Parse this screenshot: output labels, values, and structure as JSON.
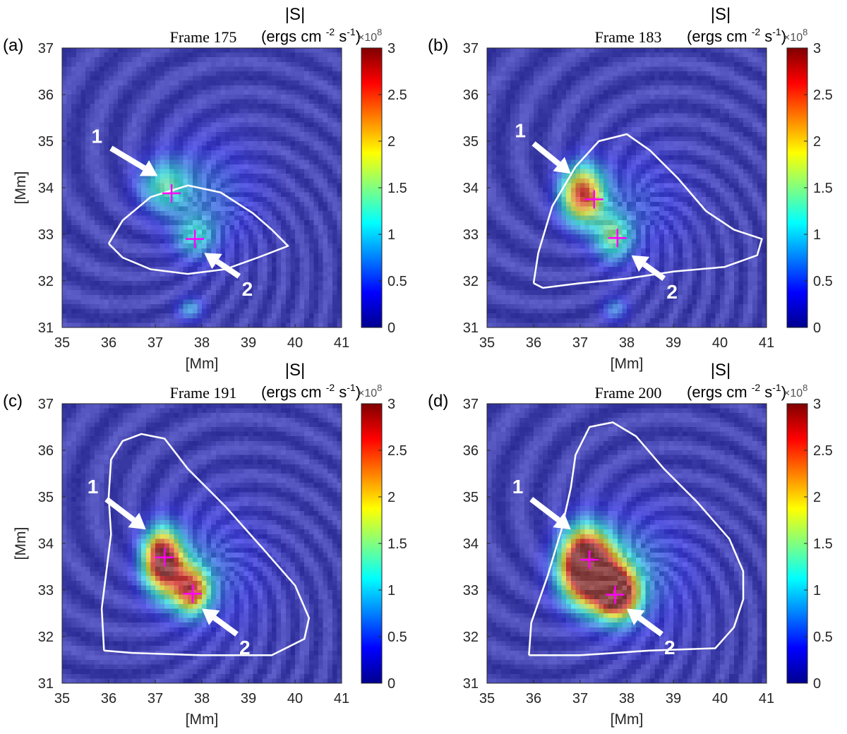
{
  "figure": {
    "colorbar_label_top": "|S|",
    "colorbar_label_units": "(ergs cm",
    "colorbar_label_exp1": "-2",
    "colorbar_label_mid": " s",
    "colorbar_label_exp2": "-1",
    "colorbar_label_end": ")",
    "colorbar_multiplier": "×10",
    "colorbar_multiplier_exp": "8",
    "colormap": [
      "#00008f",
      "#0000ff",
      "#0080ff",
      "#00ffff",
      "#80ff80",
      "#ffff00",
      "#ff8000",
      "#ff0000",
      "#800000"
    ]
  },
  "chart_data": [
    {
      "type": "heatmap",
      "panel_label": "(a)",
      "title": "Frame 175",
      "xlabel": "[Mm]",
      "ylabel": "[Mm]",
      "xlim": [
        35,
        41
      ],
      "ylim": [
        31,
        37
      ],
      "xticks": [
        35,
        36,
        37,
        38,
        39,
        40,
        41
      ],
      "yticks": [
        31,
        32,
        33,
        34,
        35,
        36,
        37
      ],
      "colorbar": {
        "range": [
          0,
          3
        ],
        "ticks": [
          "0",
          "0.5",
          "1",
          "1.5",
          "2",
          "2.5",
          "3"
        ]
      },
      "markers": [
        {
          "label": "1",
          "x": 37.35,
          "y": 33.88
        },
        {
          "label": "2",
          "x": 37.85,
          "y": 32.9
        }
      ],
      "arrows": [
        {
          "label": "1",
          "from": [
            36.05,
            34.85
          ],
          "to": [
            37.05,
            34.25
          ]
        },
        {
          "label": "2",
          "from": [
            38.8,
            32.1
          ],
          "to": [
            38.05,
            32.6
          ]
        }
      ],
      "contour": [
        [
          36.0,
          32.8
        ],
        [
          36.3,
          33.3
        ],
        [
          36.9,
          33.8
        ],
        [
          37.7,
          34.05
        ],
        [
          38.4,
          33.9
        ],
        [
          39.1,
          33.45
        ],
        [
          39.5,
          33.1
        ],
        [
          39.85,
          32.75
        ],
        [
          39.2,
          32.5
        ],
        [
          38.5,
          32.25
        ],
        [
          37.7,
          32.15
        ],
        [
          36.9,
          32.25
        ],
        [
          36.3,
          32.5
        ],
        [
          36.0,
          32.8
        ]
      ],
      "blobs": [
        {
          "x": 37.2,
          "y": 34.05,
          "peak": 1.05,
          "sx": 0.38,
          "sy": 0.38
        },
        {
          "x": 37.85,
          "y": 32.95,
          "peak": 0.8,
          "sx": 0.3,
          "sy": 0.32
        },
        {
          "x": 37.75,
          "y": 31.4,
          "peak": 0.7,
          "sx": 0.2,
          "sy": 0.18
        },
        {
          "x": 38.1,
          "y": 33.8,
          "peak": 0.45,
          "sx": 0.8,
          "sy": 0.9
        }
      ]
    },
    {
      "type": "heatmap",
      "panel_label": "(b)",
      "title": "Frame 183",
      "xlabel": "[Mm]",
      "ylabel": "",
      "xlim": [
        35,
        41
      ],
      "ylim": [
        31,
        37
      ],
      "xticks": [
        35,
        36,
        37,
        38,
        39,
        40,
        41
      ],
      "yticks": [
        31,
        32,
        33,
        34,
        35,
        36,
        37
      ],
      "colorbar": {
        "range": [
          0,
          3
        ],
        "ticks": [
          "0",
          "0.5",
          "1",
          "1.5",
          "2",
          "2.5",
          "3"
        ]
      },
      "markers": [
        {
          "label": "1",
          "x": 37.3,
          "y": 33.75
        },
        {
          "label": "2",
          "x": 37.8,
          "y": 32.92
        }
      ],
      "arrows": [
        {
          "label": "1",
          "from": [
            36.0,
            34.95
          ],
          "to": [
            36.8,
            34.3
          ]
        },
        {
          "label": "2",
          "from": [
            38.8,
            32.05
          ],
          "to": [
            38.1,
            32.55
          ]
        }
      ],
      "contour": [
        [
          36.0,
          31.95
        ],
        [
          36.1,
          32.6
        ],
        [
          36.4,
          33.6
        ],
        [
          36.9,
          34.45
        ],
        [
          37.4,
          35.0
        ],
        [
          38.0,
          35.15
        ],
        [
          38.5,
          34.8
        ],
        [
          39.1,
          34.2
        ],
        [
          39.7,
          33.5
        ],
        [
          40.3,
          33.1
        ],
        [
          40.9,
          32.9
        ],
        [
          40.8,
          32.55
        ],
        [
          40.1,
          32.3
        ],
        [
          39.0,
          32.2
        ],
        [
          38.0,
          32.05
        ],
        [
          37.0,
          31.95
        ],
        [
          36.2,
          31.85
        ],
        [
          36.0,
          31.95
        ]
      ],
      "blobs": [
        {
          "x": 37.05,
          "y": 33.85,
          "peak": 2.6,
          "sx": 0.32,
          "sy": 0.42
        },
        {
          "x": 37.7,
          "y": 32.95,
          "peak": 1.2,
          "sx": 0.28,
          "sy": 0.35
        },
        {
          "x": 37.75,
          "y": 31.4,
          "peak": 0.55,
          "sx": 0.2,
          "sy": 0.2
        },
        {
          "x": 38.2,
          "y": 33.6,
          "peak": 0.35,
          "sx": 0.8,
          "sy": 0.9
        }
      ]
    },
    {
      "type": "heatmap",
      "panel_label": "(c)",
      "title": "Frame 191",
      "xlabel": "[Mm]",
      "ylabel": "[Mm]",
      "xlim": [
        35,
        41
      ],
      "ylim": [
        31,
        37
      ],
      "xticks": [
        35,
        36,
        37,
        38,
        39,
        40,
        41
      ],
      "yticks": [
        31,
        32,
        33,
        34,
        35,
        36,
        37
      ],
      "colorbar": {
        "range": [
          0,
          3
        ],
        "ticks": [
          "0",
          "0.5",
          "1",
          "1.5",
          "2",
          "2.5",
          "3"
        ]
      },
      "markers": [
        {
          "label": "1",
          "x": 37.2,
          "y": 33.7
        },
        {
          "label": "2",
          "x": 37.8,
          "y": 32.92
        }
      ],
      "arrows": [
        {
          "label": "1",
          "from": [
            35.95,
            34.95
          ],
          "to": [
            36.8,
            34.3
          ]
        },
        {
          "label": "2",
          "from": [
            38.75,
            32.05
          ],
          "to": [
            38.0,
            32.6
          ]
        }
      ],
      "contour": [
        [
          35.9,
          31.7
        ],
        [
          35.85,
          32.6
        ],
        [
          35.95,
          33.4
        ],
        [
          36.05,
          34.2
        ],
        [
          36.0,
          35.0
        ],
        [
          36.05,
          35.8
        ],
        [
          36.3,
          36.2
        ],
        [
          36.7,
          36.35
        ],
        [
          37.2,
          36.25
        ],
        [
          37.7,
          35.6
        ],
        [
          38.5,
          34.8
        ],
        [
          39.3,
          33.9
        ],
        [
          40.0,
          33.1
        ],
        [
          40.3,
          32.4
        ],
        [
          40.2,
          31.95
        ],
        [
          39.5,
          31.6
        ],
        [
          38.0,
          31.6
        ],
        [
          36.5,
          31.65
        ],
        [
          35.9,
          31.7
        ]
      ],
      "blobs": [
        {
          "x": 37.15,
          "y": 33.7,
          "peak": 3.0,
          "sx": 0.28,
          "sy": 0.42
        },
        {
          "x": 37.8,
          "y": 32.95,
          "peak": 1.8,
          "sx": 0.25,
          "sy": 0.32
        },
        {
          "x": 37.5,
          "y": 33.2,
          "peak": 1.1,
          "sx": 0.4,
          "sy": 0.4
        },
        {
          "x": 38.1,
          "y": 33.4,
          "peak": 0.4,
          "sx": 0.9,
          "sy": 1.0
        }
      ]
    },
    {
      "type": "heatmap",
      "panel_label": "(d)",
      "title": "Frame 200",
      "xlabel": "[Mm]",
      "ylabel": "",
      "xlim": [
        35,
        41
      ],
      "ylim": [
        31,
        37
      ],
      "xticks": [
        35,
        36,
        37,
        38,
        39,
        40,
        41
      ],
      "yticks": [
        31,
        32,
        33,
        34,
        35,
        36,
        37
      ],
      "colorbar": {
        "range": [
          0,
          3
        ],
        "ticks": [
          "0",
          "0.5",
          "1",
          "1.5",
          "2",
          "2.5",
          "3"
        ]
      },
      "markers": [
        {
          "label": "1",
          "x": 37.2,
          "y": 33.65
        },
        {
          "label": "2",
          "x": 37.75,
          "y": 32.9
        }
      ],
      "arrows": [
        {
          "label": "1",
          "from": [
            35.95,
            34.95
          ],
          "to": [
            36.8,
            34.3
          ]
        },
        {
          "label": "2",
          "from": [
            38.75,
            32.05
          ],
          "to": [
            38.0,
            32.6
          ]
        }
      ],
      "contour": [
        [
          35.9,
          31.6
        ],
        [
          35.95,
          32.3
        ],
        [
          36.3,
          33.3
        ],
        [
          36.6,
          34.3
        ],
        [
          36.8,
          35.2
        ],
        [
          36.9,
          35.9
        ],
        [
          37.2,
          36.5
        ],
        [
          37.7,
          36.6
        ],
        [
          38.2,
          36.3
        ],
        [
          38.8,
          35.6
        ],
        [
          39.5,
          34.9
        ],
        [
          40.2,
          34.1
        ],
        [
          40.5,
          33.4
        ],
        [
          40.5,
          32.8
        ],
        [
          40.3,
          32.2
        ],
        [
          39.9,
          31.75
        ],
        [
          38.5,
          31.7
        ],
        [
          37.0,
          31.6
        ],
        [
          35.9,
          31.6
        ]
      ],
      "blobs": [
        {
          "x": 37.1,
          "y": 33.6,
          "peak": 3.2,
          "sx": 0.35,
          "sy": 0.5
        },
        {
          "x": 37.8,
          "y": 32.9,
          "peak": 2.8,
          "sx": 0.3,
          "sy": 0.35
        },
        {
          "x": 37.4,
          "y": 33.25,
          "peak": 1.8,
          "sx": 0.5,
          "sy": 0.5
        },
        {
          "x": 38.2,
          "y": 33.4,
          "peak": 0.45,
          "sx": 0.9,
          "sy": 1.0
        }
      ]
    }
  ]
}
